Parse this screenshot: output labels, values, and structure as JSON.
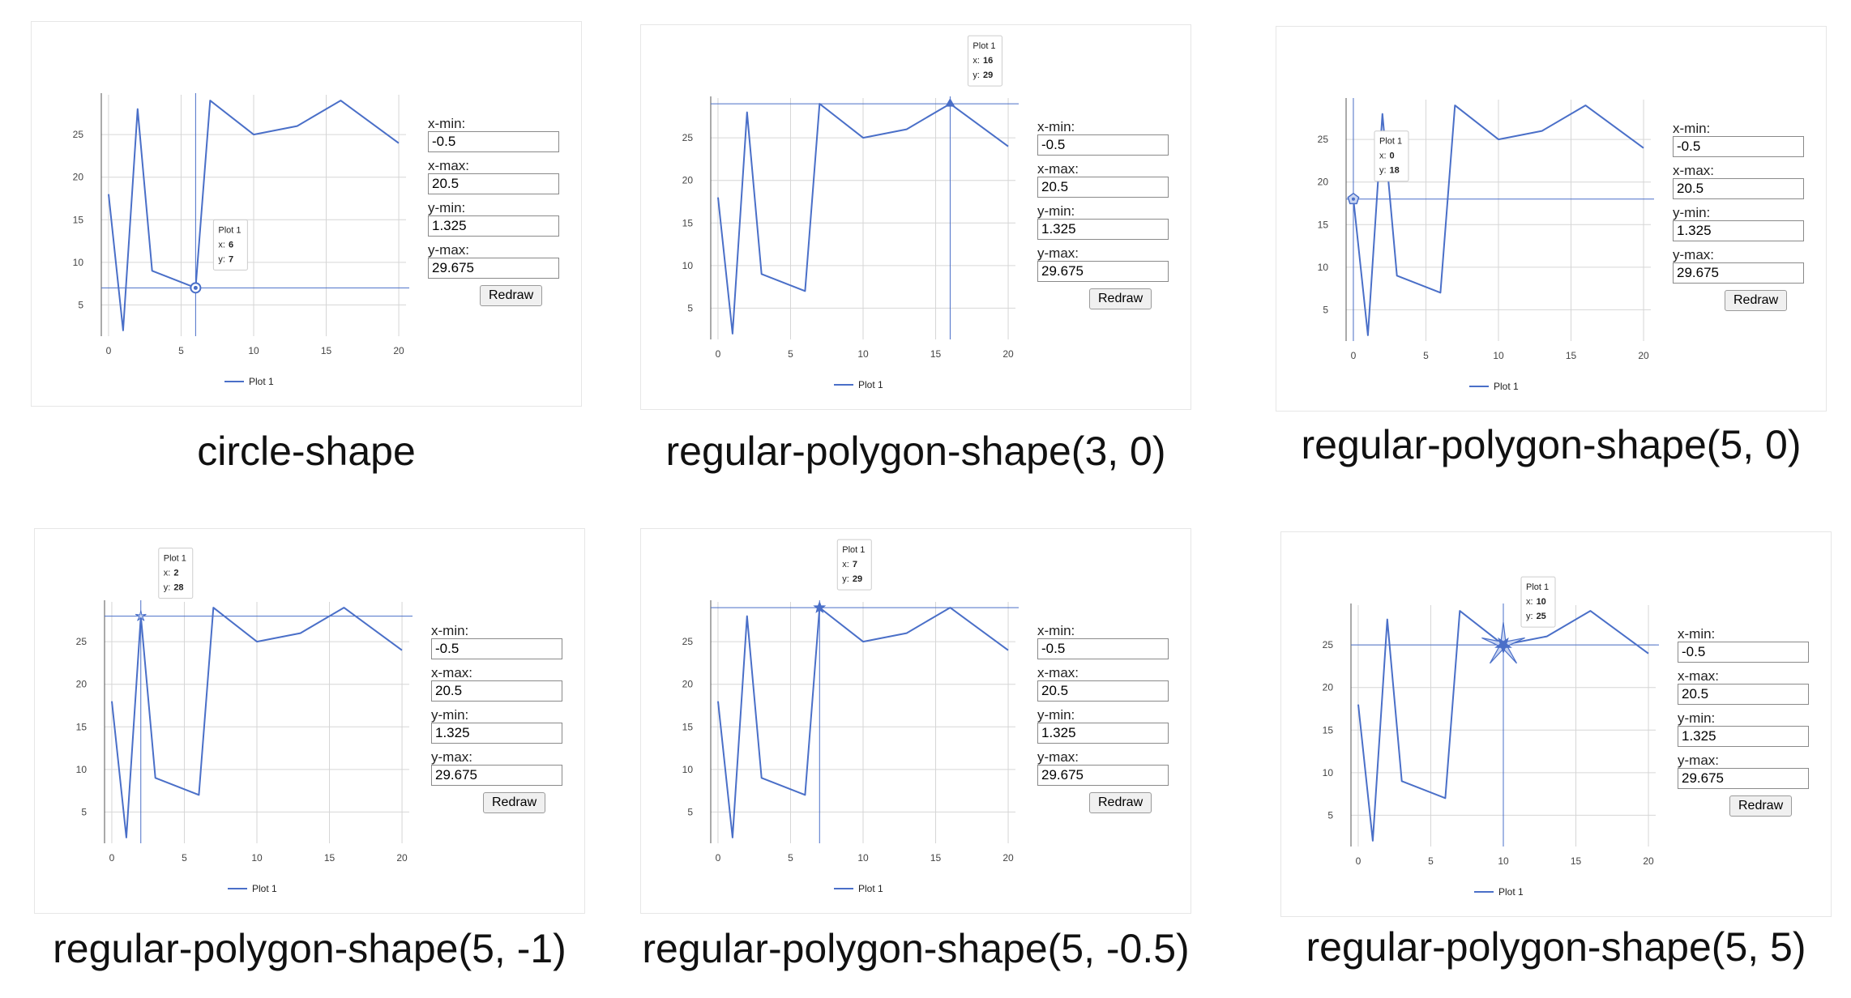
{
  "colors": {
    "series": "#4a6fc8",
    "grid": "#d6d6d6",
    "axis": "#555555"
  },
  "form_labels": {
    "xmin": "x-min:",
    "xmax": "x-max:",
    "ymin": "y-min:",
    "ymax": "y-max:"
  },
  "form_values": {
    "xmin": "-0.5",
    "xmax": "20.5",
    "ymin": "1.325",
    "ymax": "29.675"
  },
  "redraw_label": "Redraw",
  "tooltip_labels": {
    "x": "x:",
    "y": "y:"
  },
  "chart_data": [
    {
      "type": "line",
      "caption": "circle-shape",
      "marker": "circle",
      "x": [
        0,
        1,
        2,
        3,
        6,
        7,
        10,
        13,
        16,
        20
      ],
      "series": [
        {
          "name": "Plot 1",
          "values": [
            18,
            2,
            28,
            9,
            7,
            29,
            25,
            26,
            29,
            24
          ]
        }
      ],
      "xlim": [
        -0.5,
        20.5
      ],
      "ylim": [
        1.325,
        29.675
      ],
      "x_ticks": [
        0,
        5,
        10,
        15,
        20
      ],
      "y_ticks": [
        5,
        10,
        15,
        20,
        25
      ],
      "legend": "bottom",
      "grid": true,
      "tooltip": {
        "series": "Plot 1",
        "x": "6",
        "y": "7"
      }
    },
    {
      "type": "line",
      "caption": "regular-polygon-shape(3, 0)",
      "marker": "triangle",
      "x": [
        0,
        1,
        2,
        3,
        6,
        7,
        10,
        13,
        16,
        20
      ],
      "series": [
        {
          "name": "Plot 1",
          "values": [
            18,
            2,
            28,
            9,
            7,
            29,
            25,
            26,
            29,
            24
          ]
        }
      ],
      "xlim": [
        -0.5,
        20.5
      ],
      "ylim": [
        1.325,
        29.675
      ],
      "x_ticks": [
        0,
        5,
        10,
        15,
        20
      ],
      "y_ticks": [
        5,
        10,
        15,
        20,
        25
      ],
      "legend": "bottom",
      "grid": true,
      "tooltip": {
        "series": "Plot 1",
        "x": "16",
        "y": "29"
      }
    },
    {
      "type": "line",
      "caption": "regular-polygon-shape(5, 0)",
      "marker": "pentagon",
      "x": [
        0,
        1,
        2,
        3,
        6,
        7,
        10,
        13,
        16,
        20
      ],
      "series": [
        {
          "name": "Plot 1",
          "values": [
            18,
            2,
            28,
            9,
            7,
            29,
            25,
            26,
            29,
            24
          ]
        }
      ],
      "xlim": [
        -0.5,
        20.5
      ],
      "ylim": [
        1.325,
        29.675
      ],
      "x_ticks": [
        0,
        5,
        10,
        15,
        20
      ],
      "y_ticks": [
        5,
        10,
        15,
        20,
        25
      ],
      "legend": "bottom",
      "grid": true,
      "tooltip": {
        "series": "Plot 1",
        "x": "0",
        "y": "18"
      }
    },
    {
      "type": "line",
      "caption": "regular-polygon-shape(5, -1)",
      "marker": "star-thin",
      "x": [
        0,
        1,
        2,
        3,
        6,
        7,
        10,
        13,
        16,
        20
      ],
      "series": [
        {
          "name": "Plot 1",
          "values": [
            18,
            2,
            28,
            9,
            7,
            29,
            25,
            26,
            29,
            24
          ]
        }
      ],
      "xlim": [
        -0.5,
        20.5
      ],
      "ylim": [
        1.325,
        29.675
      ],
      "x_ticks": [
        0,
        5,
        10,
        15,
        20
      ],
      "y_ticks": [
        5,
        10,
        15,
        20,
        25
      ],
      "legend": "bottom",
      "grid": true,
      "tooltip": {
        "series": "Plot 1",
        "x": "2",
        "y": "28"
      }
    },
    {
      "type": "line",
      "caption": "regular-polygon-shape(5, -0.5)",
      "marker": "star",
      "x": [
        0,
        1,
        2,
        3,
        6,
        7,
        10,
        13,
        16,
        20
      ],
      "series": [
        {
          "name": "Plot 1",
          "values": [
            18,
            2,
            28,
            9,
            7,
            29,
            25,
            26,
            29,
            24
          ]
        }
      ],
      "xlim": [
        -0.5,
        20.5
      ],
      "ylim": [
        1.325,
        29.675
      ],
      "x_ticks": [
        0,
        5,
        10,
        15,
        20
      ],
      "y_ticks": [
        5,
        10,
        15,
        20,
        25
      ],
      "legend": "bottom",
      "grid": true,
      "tooltip": {
        "series": "Plot 1",
        "x": "7",
        "y": "29"
      }
    },
    {
      "type": "line",
      "caption": "regular-polygon-shape(5, 5)",
      "marker": "star-large",
      "x": [
        0,
        1,
        2,
        3,
        6,
        7,
        10,
        13,
        16,
        20
      ],
      "series": [
        {
          "name": "Plot 1",
          "values": [
            18,
            2,
            28,
            9,
            7,
            29,
            25,
            26,
            29,
            24
          ]
        }
      ],
      "xlim": [
        -0.5,
        20.5
      ],
      "ylim": [
        1.325,
        29.675
      ],
      "x_ticks": [
        0,
        5,
        10,
        15,
        20
      ],
      "y_ticks": [
        5,
        10,
        15,
        20,
        25
      ],
      "legend": "bottom",
      "grid": true,
      "tooltip": {
        "series": "Plot 1",
        "x": "10",
        "y": "25"
      }
    }
  ]
}
